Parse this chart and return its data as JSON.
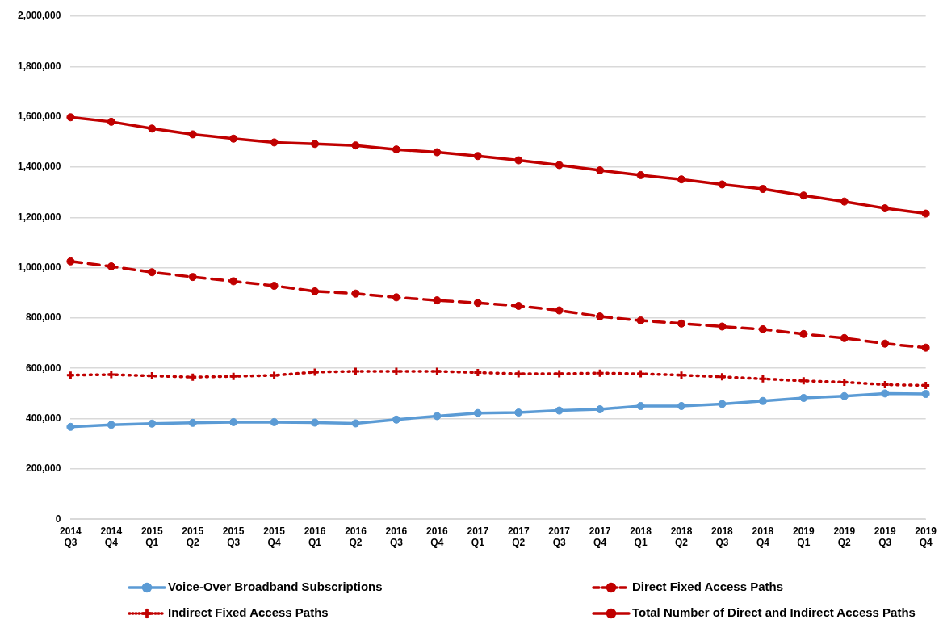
{
  "chart_data": {
    "type": "line",
    "categories": [
      "2014\nQ3",
      "2014\nQ4",
      "2015\nQ1",
      "2015\nQ2",
      "2015\nQ3",
      "2015\nQ4",
      "2016\nQ1",
      "2016\nQ2",
      "2016\nQ3",
      "2016\nQ4",
      "2017\nQ1",
      "2017\nQ2",
      "2017\nQ3",
      "2017\nQ4",
      "2018\nQ1",
      "2018\nQ2",
      "2018\nQ3",
      "2018\nQ4",
      "2019\nQ1",
      "2019\nQ2",
      "2019\nQ3",
      "2019\nQ4"
    ],
    "series": [
      {
        "name": "Voice-Over Broadband Subscriptions",
        "color": "#5b9bd5",
        "marker": "circle",
        "line_style": "solid",
        "values": [
          367000,
          375000,
          380000,
          383000,
          386000,
          386000,
          384000,
          381000,
          396000,
          410000,
          422000,
          424000,
          432000,
          437000,
          450000,
          450000,
          458000,
          470000,
          482000,
          489000,
          500000,
          498000
        ]
      },
      {
        "name": "Direct Fixed Access Paths",
        "color": "#c00000",
        "marker": "circle",
        "line_style": "dashed",
        "values": [
          1025000,
          1005000,
          982000,
          963000,
          946000,
          928000,
          906000,
          897000,
          882000,
          870000,
          860000,
          848000,
          830000,
          806000,
          790000,
          778000,
          766000,
          755000,
          736000,
          720000,
          698000,
          682000
        ]
      },
      {
        "name": "Indirect Fixed Access Paths",
        "color": "#c00000",
        "marker": "cross",
        "line_style": "dotted",
        "values": [
          573000,
          575000,
          570000,
          565000,
          568000,
          572000,
          585000,
          588000,
          588000,
          588000,
          583000,
          578000,
          578000,
          581000,
          578000,
          573000,
          566000,
          558000,
          550000,
          545000,
          535000,
          532000
        ]
      },
      {
        "name": "Total Number of Direct and Indirect Access Paths",
        "color": "#c00000",
        "marker": "circle",
        "line_style": "solid",
        "values": [
          1598000,
          1580000,
          1553000,
          1530000,
          1513000,
          1498000,
          1492000,
          1486000,
          1470000,
          1459000,
          1444000,
          1427000,
          1408000,
          1387000,
          1368000,
          1351000,
          1331000,
          1313000,
          1287000,
          1263000,
          1236000,
          1215000
        ]
      }
    ],
    "ylim": [
      0,
      2000000
    ],
    "yticks": [
      0,
      {
        "value": 200000,
        "label": "200,000"
      },
      {
        "value": 400000,
        "label": "400,000"
      },
      {
        "value": 600000,
        "label": "600,000"
      },
      {
        "value": 800000,
        "label": "800,000"
      },
      {
        "value": 1000000,
        "label": "1,000,000"
      },
      {
        "value": 1200000,
        "label": "1,200,000"
      },
      {
        "value": 1400000,
        "label": "1,400,000"
      },
      {
        "value": 1600000,
        "label": "1,600,000"
      },
      {
        "value": 1800000,
        "label": "1,800,000"
      },
      {
        "value": 2000000,
        "label": "2,000,000"
      }
    ],
    "grid": "y",
    "legend": "bottom"
  }
}
